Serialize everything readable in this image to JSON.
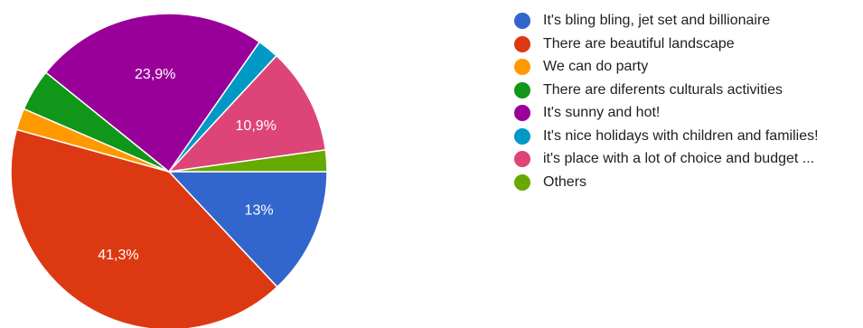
{
  "chart_data": {
    "type": "pie",
    "slices": [
      {
        "label": "It's bling bling, jet set and billionaire",
        "value": 13.0,
        "color": "#3366cc",
        "data_label": "13%"
      },
      {
        "label": "There are beautiful landscape",
        "value": 41.3,
        "color": "#dc3912",
        "data_label": "41,3%"
      },
      {
        "label": "We can do party",
        "value": 2.2,
        "color": "#ff9900",
        "data_label": ""
      },
      {
        "label": "There are diferents culturals activities",
        "value": 4.3,
        "color": "#109618",
        "data_label": ""
      },
      {
        "label": "It's sunny and hot!",
        "value": 23.9,
        "color": "#990099",
        "data_label": "23,9%"
      },
      {
        "label": "It's nice holidays with children and families!",
        "value": 2.2,
        "color": "#0099c6",
        "data_label": ""
      },
      {
        "label": "it's place with a lot of choice and budget ...",
        "value": 10.9,
        "color": "#dd4477",
        "data_label": "10,9%"
      },
      {
        "label": "Others",
        "value": 2.2,
        "color": "#66aa00",
        "data_label": ""
      }
    ],
    "drawing_order": [
      0,
      1,
      2,
      3,
      4,
      5,
      6,
      7
    ],
    "legend_placement": "right"
  }
}
